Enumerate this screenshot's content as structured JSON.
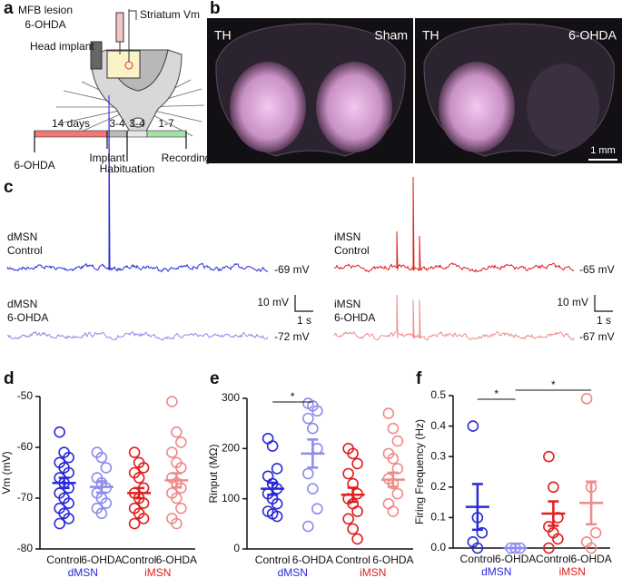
{
  "panel_labels": [
    "a",
    "b",
    "c",
    "d",
    "e",
    "f"
  ],
  "a": {
    "title": [
      "MFB lesion",
      "6-OHDA"
    ],
    "head_implant": "Head implant",
    "striatum": "Striatum Vm",
    "timeline": {
      "durations": [
        "14 days",
        "3-4",
        "3-4",
        "1-7"
      ],
      "events": [
        "6-OHDA",
        "Implant",
        "Habituation",
        "Recording"
      ]
    }
  },
  "b": {
    "images": [
      {
        "stain": "TH",
        "condition": "Sham"
      },
      {
        "stain": "TH",
        "condition": "6-OHDA"
      }
    ],
    "scale": "1 mm"
  },
  "c": {
    "traces": [
      {
        "label": [
          "dMSN",
          "Control"
        ],
        "vm": "-69 mV",
        "color": "#2a2ad8"
      },
      {
        "label": [
          "dMSN",
          "6-OHDA"
        ],
        "vm": "-72 mV",
        "color": "#8c8cec"
      },
      {
        "label": [
          "iMSN",
          "Control"
        ],
        "vm": "-65 mV",
        "color": "#e01e1e"
      },
      {
        "label": [
          "iMSN",
          "6-OHDA"
        ],
        "vm": "-67 mV",
        "color": "#f08a8a"
      }
    ],
    "scale_y": "10 mV",
    "scale_x": "1 s"
  },
  "chart_data": [
    {
      "type": "dot-plot",
      "ylabel": "Vm (mV)",
      "ylim": [
        -80,
        -50
      ],
      "yticks": [
        -80,
        -70,
        -60,
        -50
      ],
      "series": [
        {
          "name": "Control",
          "color": "#2a2ad8",
          "values": [
            -57,
            -61,
            -62,
            -63,
            -64,
            -65,
            -66,
            -67,
            -68,
            -69,
            -70,
            -71,
            -72,
            -73,
            -74,
            -75
          ],
          "mean": -67,
          "sem": 1
        },
        {
          "name": "6-OHDA",
          "color": "#8c8cec",
          "values": [
            -61,
            -62,
            -64,
            -66,
            -67,
            -68,
            -69,
            -70,
            -71,
            -72,
            -73
          ],
          "mean": -67.8,
          "sem": 1.1
        },
        {
          "name": "Control",
          "color": "#e01e1e",
          "values": [
            -61,
            -63,
            -64,
            -65,
            -66,
            -68,
            -69,
            -70,
            -71,
            -72,
            -73,
            -74,
            -75
          ],
          "mean": -69,
          "sem": 1
        },
        {
          "name": "6-OHDA",
          "color": "#f08a8a",
          "values": [
            -51,
            -57,
            -59,
            -61,
            -63,
            -64,
            -66,
            -67,
            -68,
            -69,
            -70,
            -72,
            -74,
            -75
          ],
          "mean": -66.5,
          "sem": 1.4
        }
      ],
      "groups": [
        {
          "label": "dMSN",
          "color": "#2a2ad8"
        },
        {
          "label": "iMSN",
          "color": "#e01e1e"
        }
      ],
      "significance": []
    },
    {
      "type": "dot-plot",
      "ylabel": "Rinput (MΩ)",
      "ylim": [
        0,
        300
      ],
      "yticks": [
        0,
        100,
        200,
        300
      ],
      "series": [
        {
          "name": "Control",
          "color": "#2a2ad8",
          "values": [
            220,
            205,
            160,
            145,
            130,
            120,
            110,
            100,
            90,
            75,
            70,
            65
          ],
          "mean": 120,
          "sem": 12
        },
        {
          "name": "6-OHDA",
          "color": "#8c8cec",
          "values": [
            290,
            285,
            275,
            260,
            240,
            200,
            150,
            120,
            80,
            45
          ],
          "mean": 190,
          "sem": 28
        },
        {
          "name": "Control",
          "color": "#e01e1e",
          "values": [
            200,
            190,
            170,
            150,
            130,
            110,
            100,
            90,
            75,
            60,
            40,
            20
          ],
          "mean": 108,
          "sem": 14
        },
        {
          "name": "6-OHDA",
          "color": "#f08a8a",
          "values": [
            270,
            240,
            215,
            190,
            180,
            160,
            140,
            130,
            110,
            90,
            75
          ],
          "mean": 138,
          "sem": 14
        }
      ],
      "groups": [
        {
          "label": "dMSN",
          "color": "#2a2ad8"
        },
        {
          "label": "iMSN",
          "color": "#e01e1e"
        }
      ],
      "significance": [
        {
          "pair": [
            0,
            1
          ],
          "label": "*"
        }
      ]
    },
    {
      "type": "dot-plot",
      "ylabel": "Firing Frequency (Hz)",
      "ylim": [
        0,
        0.5
      ],
      "yticks": [
        {
          "value": 0,
          "label": "0.0"
        },
        0.1,
        0.2,
        0.3,
        0.4,
        0.5
      ],
      "series": [
        {
          "name": "Control",
          "color": "#2a2ad8",
          "values": [
            0.4,
            0.1,
            0.05,
            0.02,
            0
          ],
          "mean": 0.135,
          "sem": 0.075
        },
        {
          "name": "6-OHDA",
          "color": "#8c8cec",
          "values": [
            0,
            0,
            0
          ],
          "mean": 0,
          "sem": 0
        },
        {
          "name": "Control",
          "color": "#e01e1e",
          "values": [
            0.3,
            0.2,
            0.1,
            0.07,
            0.05,
            0.03,
            0
          ],
          "mean": 0.113,
          "sem": 0.04
        },
        {
          "name": "6-OHDA",
          "color": "#f08a8a",
          "values": [
            0.49,
            0.2,
            0.05,
            0.02,
            0
          ],
          "mean": 0.148,
          "sem": 0.07
        }
      ],
      "groups": [
        {
          "label": "dMSN",
          "color": "#2a2ad8"
        },
        {
          "label": "iMSN",
          "color": "#e01e1e"
        }
      ],
      "significance": [
        {
          "pair": [
            0,
            1
          ],
          "label": "*"
        },
        {
          "pair": [
            1,
            3
          ],
          "label": "*"
        }
      ]
    }
  ]
}
